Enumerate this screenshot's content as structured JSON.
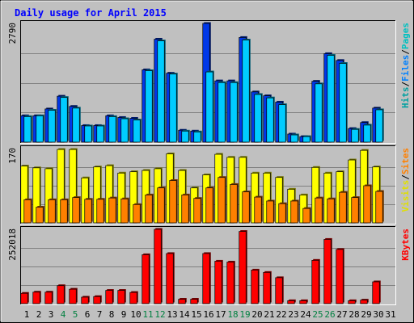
{
  "chart_data": {
    "type": "bar",
    "title": "Daily usage for April 2015",
    "days": [
      "1",
      "2",
      "3",
      "4",
      "5",
      "6",
      "7",
      "8",
      "9",
      "10",
      "11",
      "12",
      "13",
      "14",
      "15",
      "16",
      "17",
      "18",
      "19",
      "20",
      "21",
      "22",
      "23",
      "24",
      "25",
      "26",
      "27",
      "28",
      "29",
      "30",
      "31"
    ],
    "weekend_days": [
      "4",
      "5",
      "11",
      "12",
      "18",
      "19",
      "25",
      "26"
    ],
    "panels": [
      {
        "name": "pages-files-hits",
        "max_label": "2790",
        "ymax": 2790,
        "legend": [
          {
            "label": "Pages",
            "color": "#00c0c0"
          },
          {
            "label": "/",
            "color": "#000000"
          },
          {
            "label": "Files",
            "color": "#0080ff"
          },
          {
            "label": "/",
            "color": "#000000"
          },
          {
            "label": "Hits",
            "color": "#00a0a0"
          }
        ],
        "series": [
          {
            "name": "Hits",
            "color": "#0038e8",
            "values": [
              620,
              620,
              780,
              1080,
              840,
              390,
              390,
              620,
              580,
              560,
              1700,
              2420,
              1620,
              280,
              260,
              2790,
              1440,
              1440,
              2460,
              1180,
              1090,
              940,
              190,
              130,
              1430,
              2080,
              1920,
              320,
              460,
              800
            ]
          },
          {
            "name": "Files",
            "color": "#00ccff",
            "values": [
              600,
              620,
              750,
              1050,
              800,
              380,
              380,
              600,
              550,
              520,
              1680,
              2380,
              1600,
              260,
              240,
              1650,
              1400,
              1400,
              2400,
              1120,
              1040,
              880,
              170,
              130,
              1370,
              2040,
              1850,
              300,
              400,
              760
            ]
          }
        ]
      },
      {
        "name": "visits-sites",
        "max_label": "170",
        "ymax": 170,
        "legend": [
          {
            "label": "Sites",
            "color": "#ff8000"
          },
          {
            "label": "/",
            "color": "#000000"
          },
          {
            "label": "Visits",
            "color": "#e0e000"
          }
        ],
        "series": [
          {
            "name": "Visits",
            "color": "#ffff00",
            "values": [
              130,
              126,
              124,
              168,
              168,
              103,
              128,
              131,
              114,
              117,
              120,
              124,
              158,
              120,
              80,
              110,
              157,
              150,
              150,
              114,
              114,
              104,
              77,
              64,
              127,
              114,
              117,
              144,
              166,
              128
            ]
          },
          {
            "name": "Sites",
            "color": "#ff8000",
            "values": [
              53,
              36,
              53,
              53,
              58,
              54,
              54,
              57,
              55,
              42,
              64,
              80,
              97,
              64,
              56,
              80,
              104,
              88,
              71,
              59,
              50,
              44,
              50,
              33,
              57,
              55,
              70,
              58,
              85,
              72
            ]
          }
        ]
      },
      {
        "name": "kbytes",
        "max_label": "252018",
        "ymax": 252018,
        "legend": [
          {
            "label": "KBytes",
            "color": "#ff0000"
          }
        ],
        "series": [
          {
            "name": "KBytes",
            "color": "#ff0000",
            "values": [
              35000,
              39000,
              39000,
              61000,
              49000,
              22000,
              24000,
              45000,
              45000,
              38000,
              166000,
              252018,
              170000,
              15000,
              15000,
              170000,
              144000,
              141000,
              245000,
              114000,
              106000,
              88000,
              10000,
              10000,
              147000,
              218000,
              184000,
              10000,
              12000,
              74000
            ]
          }
        ]
      }
    ]
  }
}
